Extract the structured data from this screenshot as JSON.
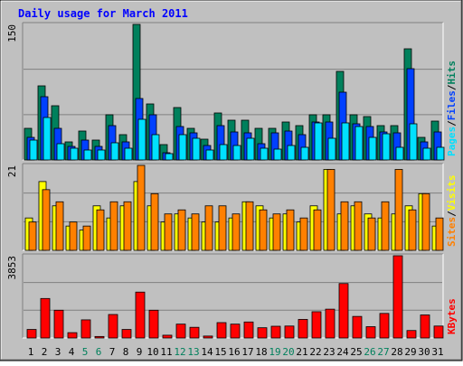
{
  "title": "Daily usage for March 2011",
  "colors": {
    "background": "#c0c0c0",
    "title": "#0000ff",
    "hits": "#00805c",
    "files": "#0040ff",
    "pages": "#00e0ff",
    "visits": "#ffff00",
    "sites": "#ff8000",
    "kbytes": "#ff0000",
    "weekend_label": "#00805c",
    "day_label": "#000000"
  },
  "days": [
    "1",
    "2",
    "3",
    "4",
    "5",
    "6",
    "7",
    "8",
    "9",
    "10",
    "11",
    "12",
    "13",
    "14",
    "15",
    "16",
    "17",
    "18",
    "19",
    "20",
    "21",
    "22",
    "23",
    "24",
    "25",
    "26",
    "27",
    "28",
    "29",
    "30",
    "31"
  ],
  "weekend_days": [
    "5",
    "6",
    "12",
    "13",
    "19",
    "20",
    "26",
    "27"
  ],
  "chart_data": [
    {
      "type": "bar",
      "ymax_label": "150",
      "ylim": [
        0,
        150
      ],
      "legend": [
        "Pages",
        "Files",
        "Hits"
      ],
      "series": [
        {
          "name": "Hits",
          "values": [
            35,
            82,
            60,
            20,
            32,
            22,
            50,
            28,
            150,
            62,
            17,
            58,
            35,
            23,
            52,
            44,
            44,
            35,
            35,
            42,
            38,
            50,
            50,
            98,
            50,
            48,
            38,
            38,
            123,
            25,
            43
          ]
        },
        {
          "name": "Files",
          "values": [
            25,
            70,
            35,
            15,
            22,
            15,
            38,
            20,
            68,
            50,
            8,
            37,
            30,
            16,
            38,
            31,
            30,
            18,
            30,
            32,
            28,
            42,
            42,
            75,
            40,
            37,
            31,
            30,
            101,
            20,
            31
          ]
        },
        {
          "name": "Pages",
          "values": [
            22,
            47,
            18,
            13,
            11,
            11,
            19,
            13,
            45,
            28,
            7,
            28,
            24,
            11,
            17,
            16,
            24,
            13,
            12,
            16,
            14,
            41,
            24,
            41,
            37,
            25,
            29,
            14,
            40,
            13,
            14
          ]
        }
      ]
    },
    {
      "type": "bar",
      "ymax_label": "21",
      "ylim": [
        0,
        21
      ],
      "legend": [
        "Sites",
        "Visits"
      ],
      "series": [
        {
          "name": "Visits",
          "values": [
            8,
            17,
            11,
            6,
            5,
            11,
            8,
            11,
            17,
            11,
            7,
            9,
            8,
            7,
            7,
            8,
            12,
            11,
            8,
            9,
            7,
            11,
            20,
            9,
            11,
            9,
            8,
            9,
            11,
            14,
            6
          ]
        },
        {
          "name": "Sites",
          "values": [
            7,
            15,
            12,
            7,
            6,
            10,
            12,
            12,
            21,
            14,
            9,
            10,
            9,
            11,
            11,
            9,
            12,
            10,
            9,
            10,
            8,
            10,
            20,
            12,
            12,
            8,
            12,
            20,
            10,
            14,
            8
          ]
        }
      ]
    },
    {
      "type": "bar",
      "ymax_label": "3853",
      "ylim": [
        0,
        3853
      ],
      "legend": [
        "KBytes"
      ],
      "series": [
        {
          "name": "KBytes",
          "values": [
            400,
            1850,
            1300,
            250,
            850,
            70,
            1100,
            400,
            2150,
            1300,
            130,
            650,
            500,
            90,
            720,
            650,
            750,
            480,
            550,
            560,
            870,
            1230,
            1350,
            2550,
            1010,
            530,
            1150,
            3853,
            350,
            1080,
            560
          ]
        }
      ]
    }
  ]
}
